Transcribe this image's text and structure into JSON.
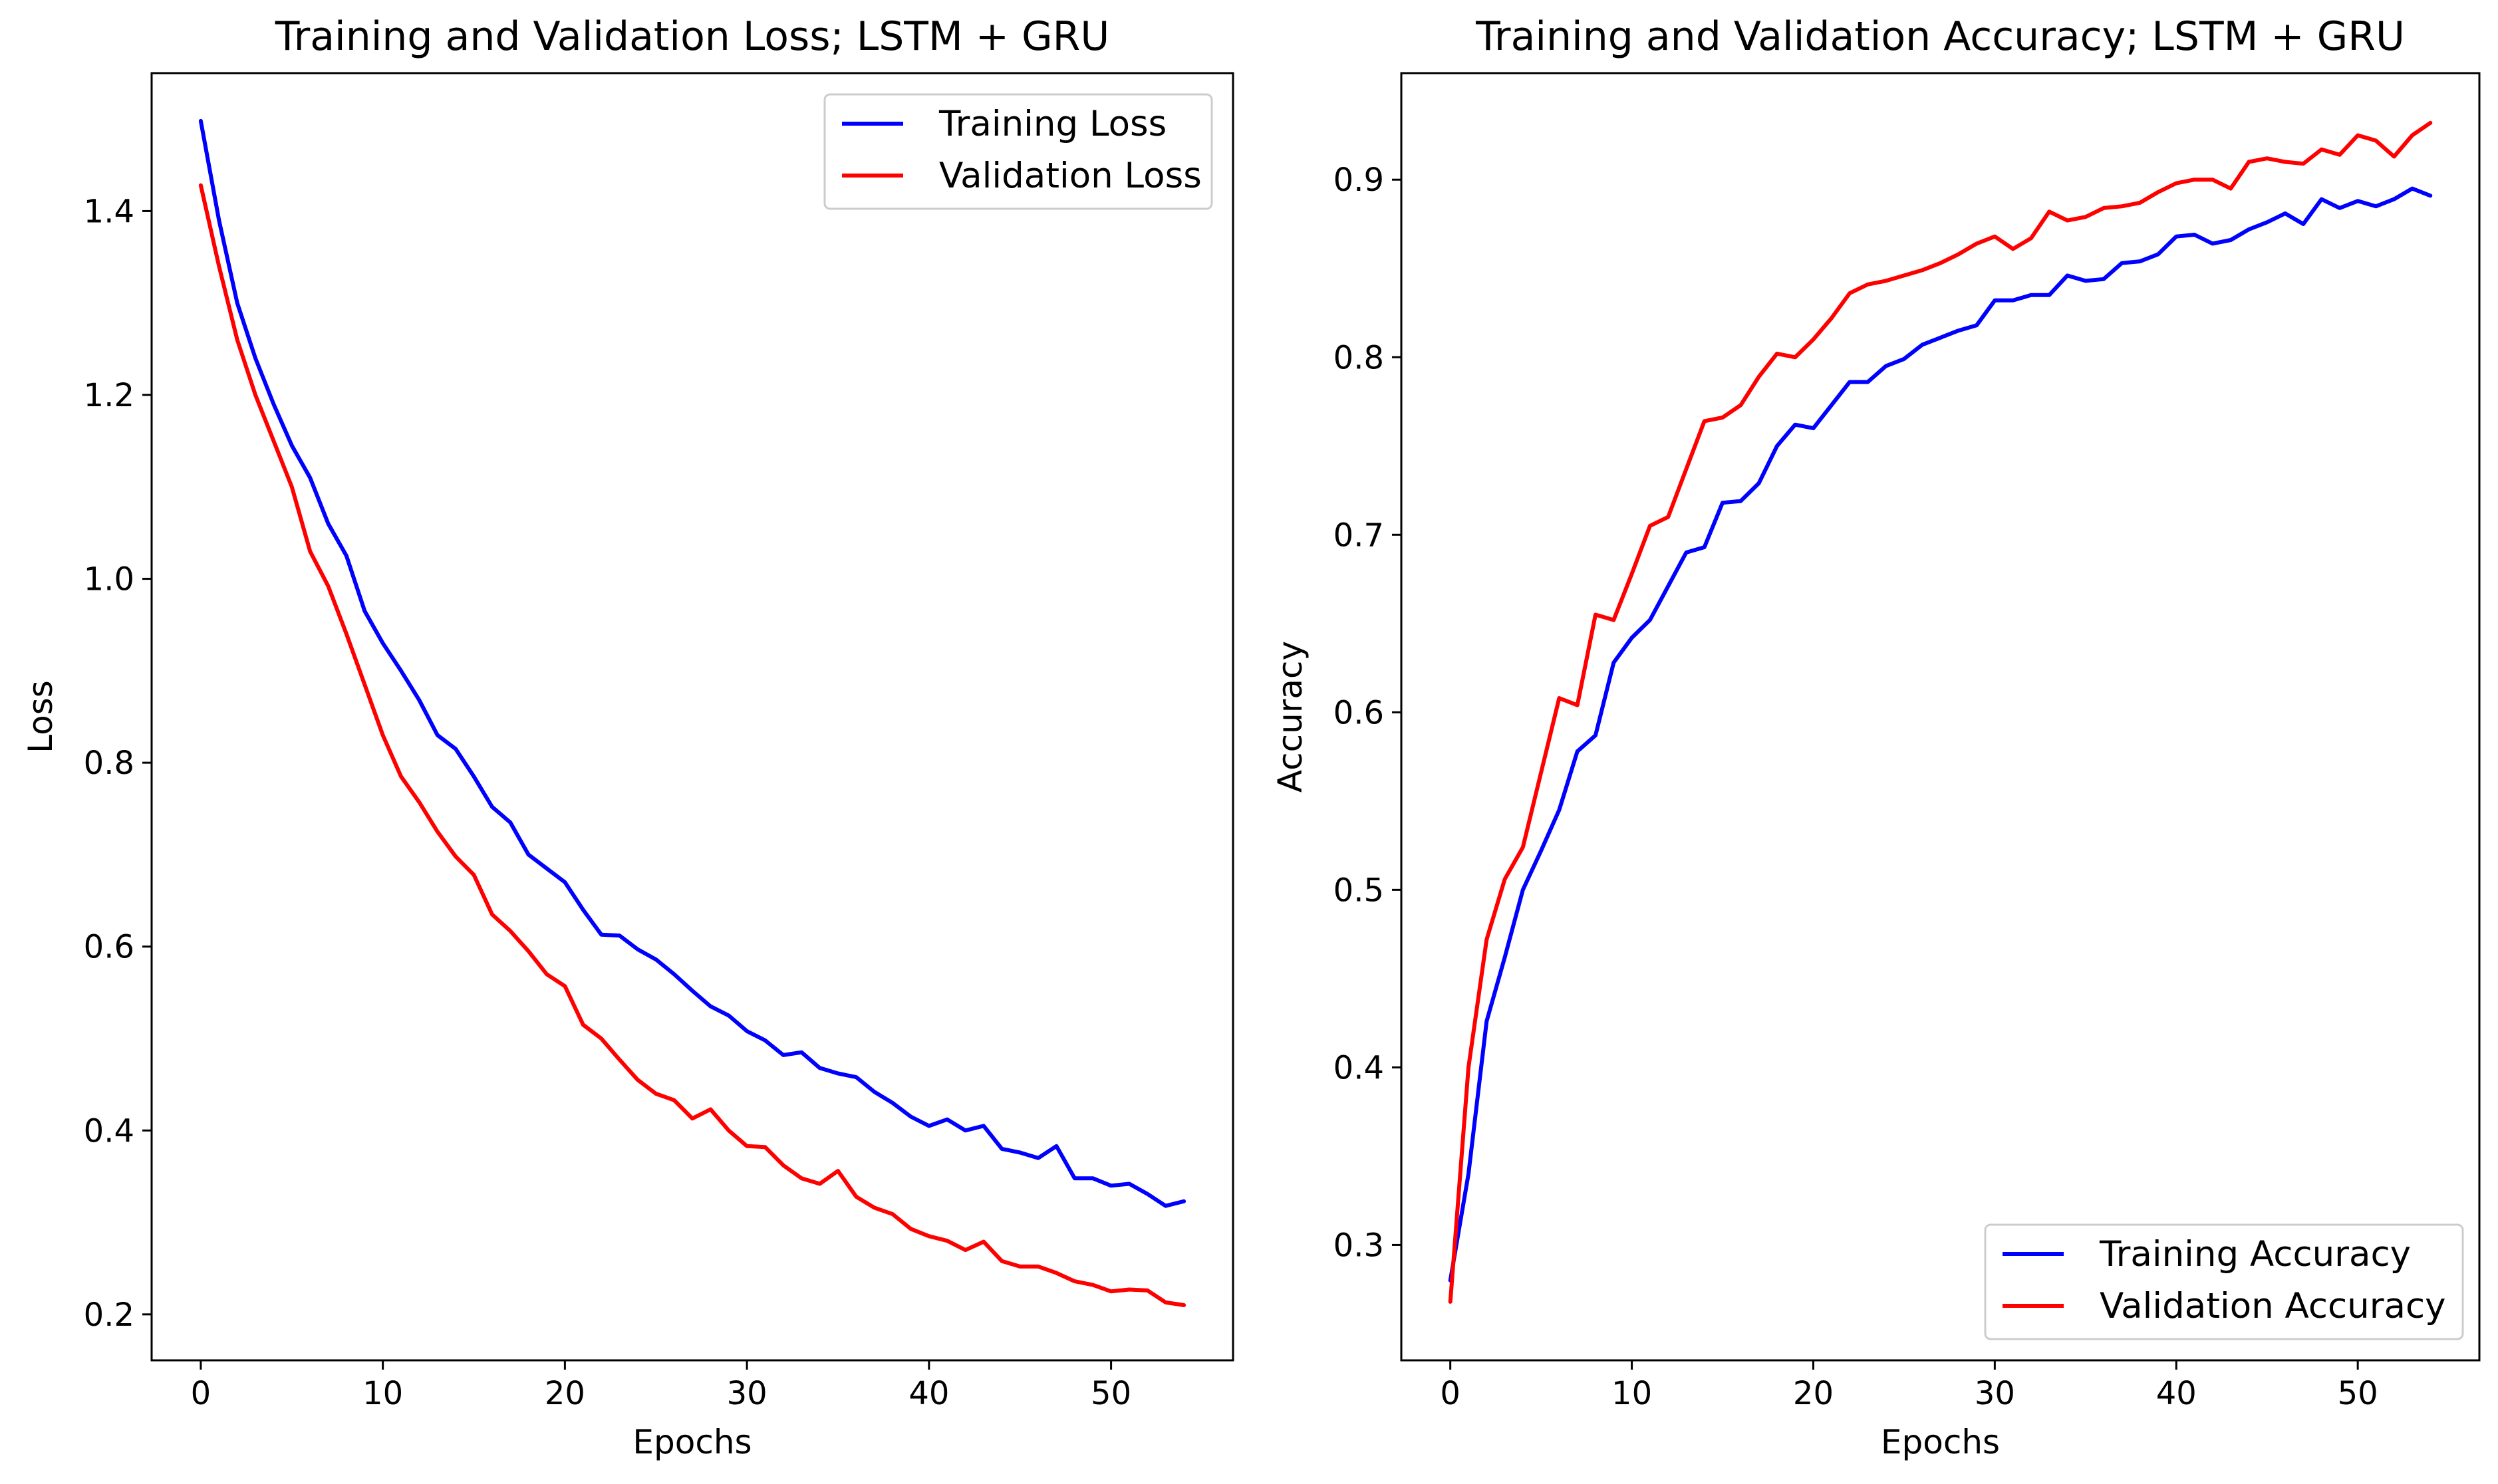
{
  "chart_data": [
    {
      "type": "line",
      "title": "Training and Validation Loss; LSTM + GRU",
      "xlabel": "Epochs",
      "ylabel": "Loss",
      "xlim": [
        -2.7,
        56.7
      ],
      "ylim": [
        0.15,
        1.55
      ],
      "xticks": [
        0,
        10,
        20,
        30,
        40,
        50
      ],
      "xtick_labels": [
        "0",
        "10",
        "20",
        "30",
        "40",
        "50"
      ],
      "yticks": [
        0.2,
        0.4,
        0.6,
        0.8,
        1.0,
        1.2,
        1.4
      ],
      "ytick_labels": [
        "0.2",
        "0.4",
        "0.6",
        "0.8",
        "1.0",
        "1.2",
        "1.4"
      ],
      "legend_position": "upper right",
      "series": [
        {
          "name": "Training Loss",
          "color": "#0000ff",
          "values": [
            1.498,
            1.39,
            1.3,
            1.24,
            1.19,
            1.145,
            1.11,
            1.06,
            1.025,
            0.965,
            0.93,
            0.9,
            0.868,
            0.83,
            0.815,
            0.785,
            0.752,
            0.735,
            0.7,
            0.685,
            0.67,
            0.64,
            0.613,
            0.612,
            0.597,
            0.586,
            0.57,
            0.552,
            0.535,
            0.525,
            0.508,
            0.498,
            0.482,
            0.485,
            0.468,
            0.462,
            0.458,
            0.442,
            0.43,
            0.415,
            0.405,
            0.412,
            0.4,
            0.405,
            0.38,
            0.376,
            0.37,
            0.383,
            0.348,
            0.348,
            0.34,
            0.342,
            0.331,
            0.318,
            0.323
          ]
        },
        {
          "name": "Validation Loss",
          "color": "#ff0000",
          "values": [
            1.428,
            1.34,
            1.26,
            1.2,
            1.15,
            1.1,
            1.03,
            0.992,
            0.94,
            0.885,
            0.83,
            0.785,
            0.757,
            0.725,
            0.698,
            0.678,
            0.635,
            0.617,
            0.595,
            0.57,
            0.557,
            0.515,
            0.5,
            0.477,
            0.455,
            0.44,
            0.433,
            0.413,
            0.423,
            0.4,
            0.383,
            0.382,
            0.362,
            0.348,
            0.342,
            0.356,
            0.328,
            0.316,
            0.309,
            0.293,
            0.285,
            0.28,
            0.27,
            0.279,
            0.258,
            0.252,
            0.252,
            0.245,
            0.236,
            0.232,
            0.225,
            0.227,
            0.226,
            0.213,
            0.21
          ]
        }
      ]
    },
    {
      "type": "line",
      "title": "Training and Validation Accuracy; LSTM + GRU",
      "xlabel": "Epochs",
      "ylabel": "Accuracy",
      "xlim": [
        -2.7,
        56.7
      ],
      "ylim": [
        0.235,
        0.96
      ],
      "xticks": [
        0,
        10,
        20,
        30,
        40,
        50
      ],
      "xtick_labels": [
        "0",
        "10",
        "20",
        "30",
        "40",
        "50"
      ],
      "yticks": [
        0.3,
        0.4,
        0.5,
        0.6,
        0.7,
        0.8,
        0.9
      ],
      "ytick_labels": [
        "0.3",
        "0.4",
        "0.5",
        "0.6",
        "0.7",
        "0.8",
        "0.9"
      ],
      "legend_position": "lower right",
      "series": [
        {
          "name": "Training Accuracy",
          "color": "#0000ff",
          "values": [
            0.28,
            0.34,
            0.426,
            0.462,
            0.5,
            0.522,
            0.545,
            0.578,
            0.587,
            0.628,
            0.642,
            0.652,
            0.671,
            0.69,
            0.693,
            0.718,
            0.719,
            0.729,
            0.75,
            0.762,
            0.76,
            0.773,
            0.786,
            0.786,
            0.795,
            0.799,
            0.807,
            0.811,
            0.815,
            0.818,
            0.832,
            0.832,
            0.835,
            0.835,
            0.846,
            0.843,
            0.844,
            0.853,
            0.854,
            0.858,
            0.868,
            0.869,
            0.864,
            0.866,
            0.872,
            0.876,
            0.881,
            0.875,
            0.889,
            0.884,
            0.888,
            0.885,
            0.889,
            0.895,
            0.891
          ]
        },
        {
          "name": "Validation Accuracy",
          "color": "#ff0000",
          "values": [
            0.268,
            0.4,
            0.472,
            0.506,
            0.524,
            0.566,
            0.608,
            0.604,
            0.655,
            0.652,
            0.678,
            0.705,
            0.71,
            0.737,
            0.764,
            0.766,
            0.773,
            0.789,
            0.802,
            0.8,
            0.81,
            0.822,
            0.836,
            0.841,
            0.843,
            0.846,
            0.849,
            0.853,
            0.858,
            0.864,
            0.868,
            0.861,
            0.867,
            0.882,
            0.877,
            0.879,
            0.884,
            0.885,
            0.887,
            0.893,
            0.898,
            0.9,
            0.9,
            0.895,
            0.91,
            0.912,
            0.91,
            0.909,
            0.917,
            0.914,
            0.925,
            0.922,
            0.913,
            0.925,
            0.932
          ]
        }
      ]
    }
  ]
}
